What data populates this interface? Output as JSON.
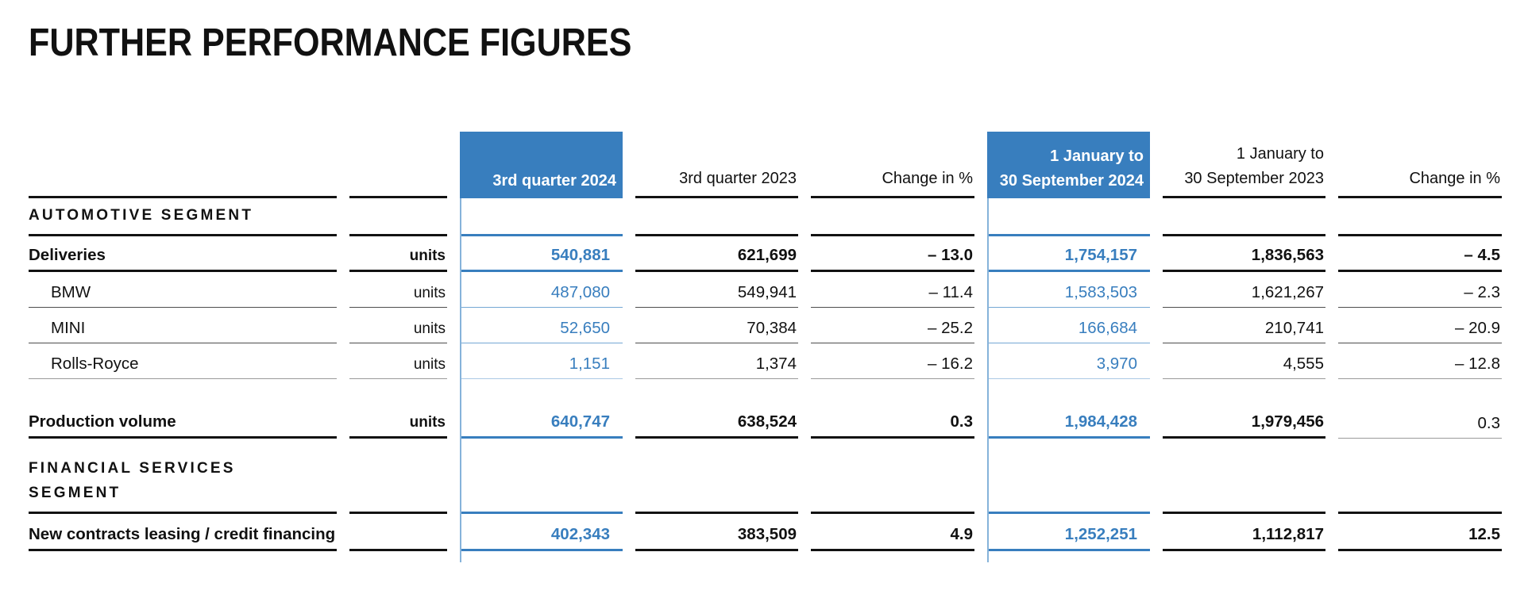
{
  "page": {
    "title": "FURTHER PERFORMANCE FIGURES"
  },
  "colors": {
    "accent_blue": "#387ebe",
    "light_blue_border": "#86b3da",
    "text_black": "#111111",
    "header_text_on_blue": "#ffffff"
  },
  "table": {
    "header": {
      "col3": "3rd quarter 2024",
      "col4": "3rd quarter 2023",
      "col5": "Change in %",
      "col6_line1": "1 January to",
      "col6_line2": "30 September 2024",
      "col7_line1": "1 January to",
      "col7_line2": "30 September 2023",
      "col8": "Change in %"
    },
    "section1": {
      "label": "AUTOMOTIVE SEGMENT"
    },
    "section2": {
      "label_line1": "FINANCIAL SERVICES",
      "label_line2": "SEGMENT"
    },
    "rows": {
      "deliveries": {
        "label": "Deliveries",
        "unit": "units",
        "v1": "540,881",
        "v2": "621,699",
        "v3": "– 13.0",
        "v4": "1,754,157",
        "v5": "1,836,563",
        "v6": "– 4.5"
      },
      "bmw": {
        "label": "BMW",
        "unit": "units",
        "v1": "487,080",
        "v2": "549,941",
        "v3": "– 11.4",
        "v4": "1,583,503",
        "v5": "1,621,267",
        "v6": "– 2.3"
      },
      "mini": {
        "label": "MINI",
        "unit": "units",
        "v1": "52,650",
        "v2": "70,384",
        "v3": "– 25.2",
        "v4": "166,684",
        "v5": "210,741",
        "v6": "– 20.9"
      },
      "rolls_royce": {
        "label": "Rolls-Royce",
        "unit": "units",
        "v1": "1,151",
        "v2": "1,374",
        "v3": "– 16.2",
        "v4": "3,970",
        "v5": "4,555",
        "v6": "– 12.8"
      },
      "production_volume": {
        "label": "Production volume",
        "unit": "units",
        "v1": "640,747",
        "v2": "638,524",
        "v3": "0.3",
        "v4": "1,984,428",
        "v5": "1,979,456",
        "v6": "0.3"
      },
      "new_contracts": {
        "label": "New contracts leasing / credit financing",
        "unit": "",
        "v1": "402,343",
        "v2": "383,509",
        "v3": "4.9",
        "v4": "1,252,251",
        "v5": "1,112,817",
        "v6": "12.5"
      }
    }
  }
}
